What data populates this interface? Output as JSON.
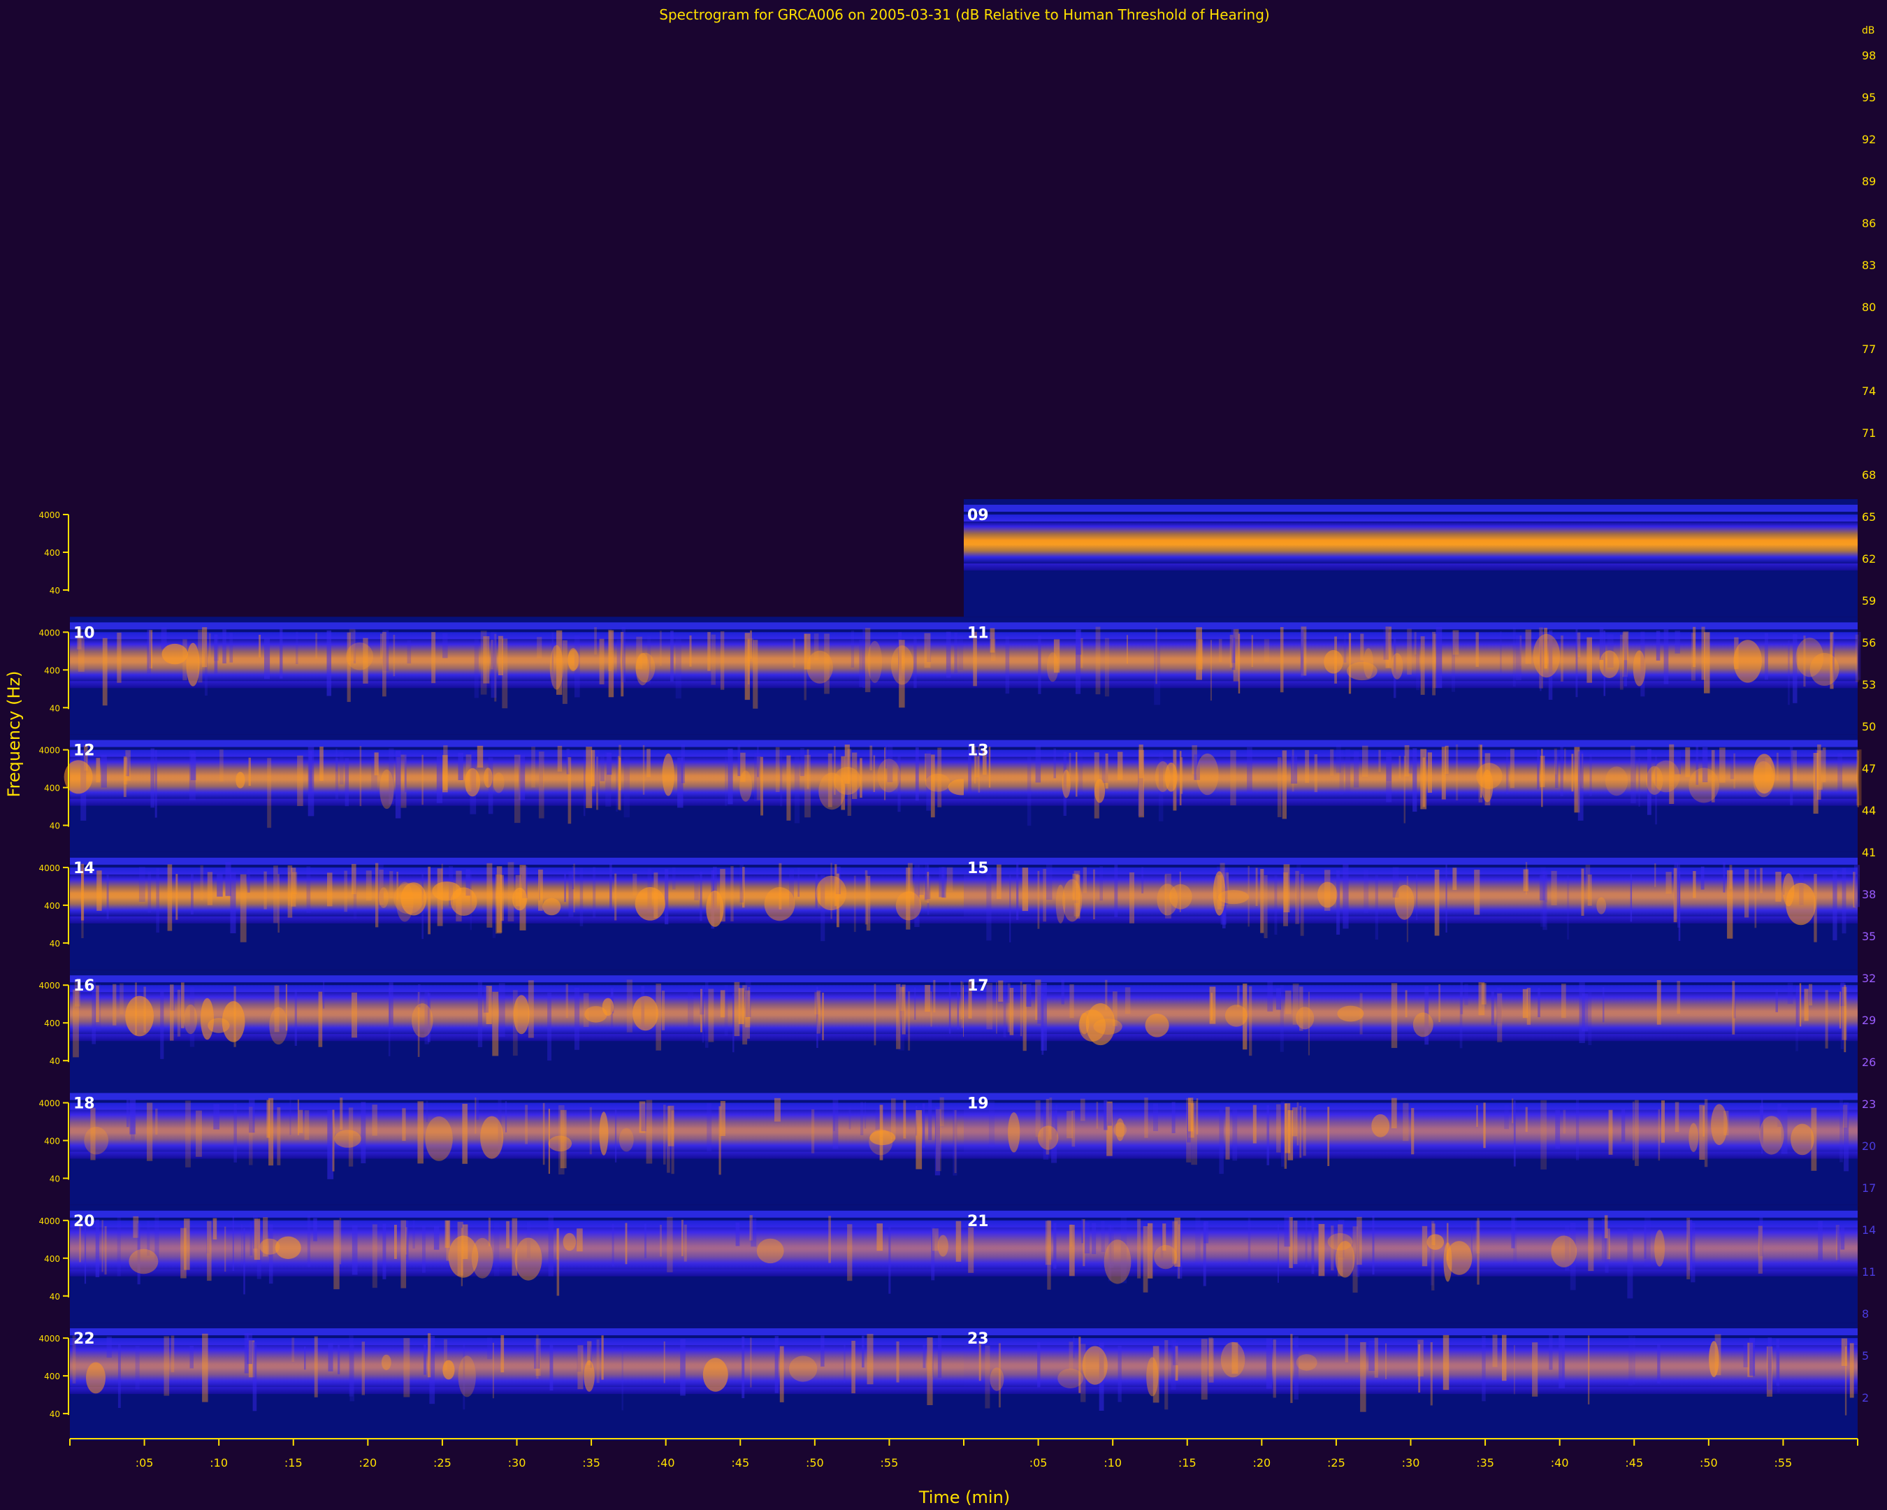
{
  "chart_data": {
    "type": "heatmap",
    "title": "Spectrogram for GRCA006 on 2005-03-31 (dB Relative to Human Threshold of Hearing)",
    "xlabel": "Time (min)",
    "ylabel": "Frequency (Hz)",
    "x_tick_labels": [
      ":05",
      ":10",
      ":15",
      ":20",
      ":25",
      ":30",
      ":35",
      ":40",
      ":45",
      ":50",
      ":55"
    ],
    "y_tick_labels": [
      "4000",
      "400",
      "40"
    ],
    "colorbar": {
      "unit_label": "dB",
      "tick_labels": [
        "98",
        "95",
        "92",
        "89",
        "86",
        "83",
        "80",
        "77",
        "74",
        "71",
        "68",
        "65",
        "62",
        "59",
        "56",
        "53",
        "50",
        "47",
        "44",
        "41",
        "38",
        "35",
        "32",
        "29",
        "26",
        "23",
        "20",
        "17",
        "14",
        "11",
        "8",
        "5",
        "2"
      ],
      "ramp": [
        "#ffffff",
        "#ffd400",
        "#ff9f00",
        "#ff8a1a",
        "#c9742e",
        "#8a4fa0",
        "#4d2fd8",
        "#2418d8",
        "#12106e",
        "#1a0530"
      ]
    },
    "hours": [
      {
        "label": "09",
        "start_half": 1,
        "hot": 0.95,
        "events": 0.0
      },
      {
        "label": "10",
        "start_half": 0,
        "hot": 0.7,
        "events": 0.6
      },
      {
        "label": "11",
        "start_half": 1,
        "hot": 0.68,
        "events": 0.6
      },
      {
        "label": "12",
        "start_half": 0,
        "hot": 0.72,
        "events": 0.7
      },
      {
        "label": "13",
        "start_half": 1,
        "hot": 0.72,
        "events": 0.7
      },
      {
        "label": "14",
        "start_half": 0,
        "hot": 0.8,
        "events": 0.7
      },
      {
        "label": "15",
        "start_half": 1,
        "hot": 0.62,
        "events": 0.6
      },
      {
        "label": "16",
        "start_half": 0,
        "hot": 0.58,
        "events": 0.6
      },
      {
        "label": "17",
        "start_half": 1,
        "hot": 0.55,
        "events": 0.5
      },
      {
        "label": "18",
        "start_half": 0,
        "hot": 0.5,
        "events": 0.5
      },
      {
        "label": "19",
        "start_half": 1,
        "hot": 0.38,
        "events": 0.5
      },
      {
        "label": "20",
        "start_half": 0,
        "hot": 0.32,
        "events": 0.5
      },
      {
        "label": "21",
        "start_half": 1,
        "hot": 0.34,
        "events": 0.5
      },
      {
        "label": "22",
        "start_half": 0,
        "hot": 0.45,
        "events": 0.4
      },
      {
        "label": "23",
        "start_half": 1,
        "hot": 0.42,
        "events": 0.4
      }
    ]
  }
}
